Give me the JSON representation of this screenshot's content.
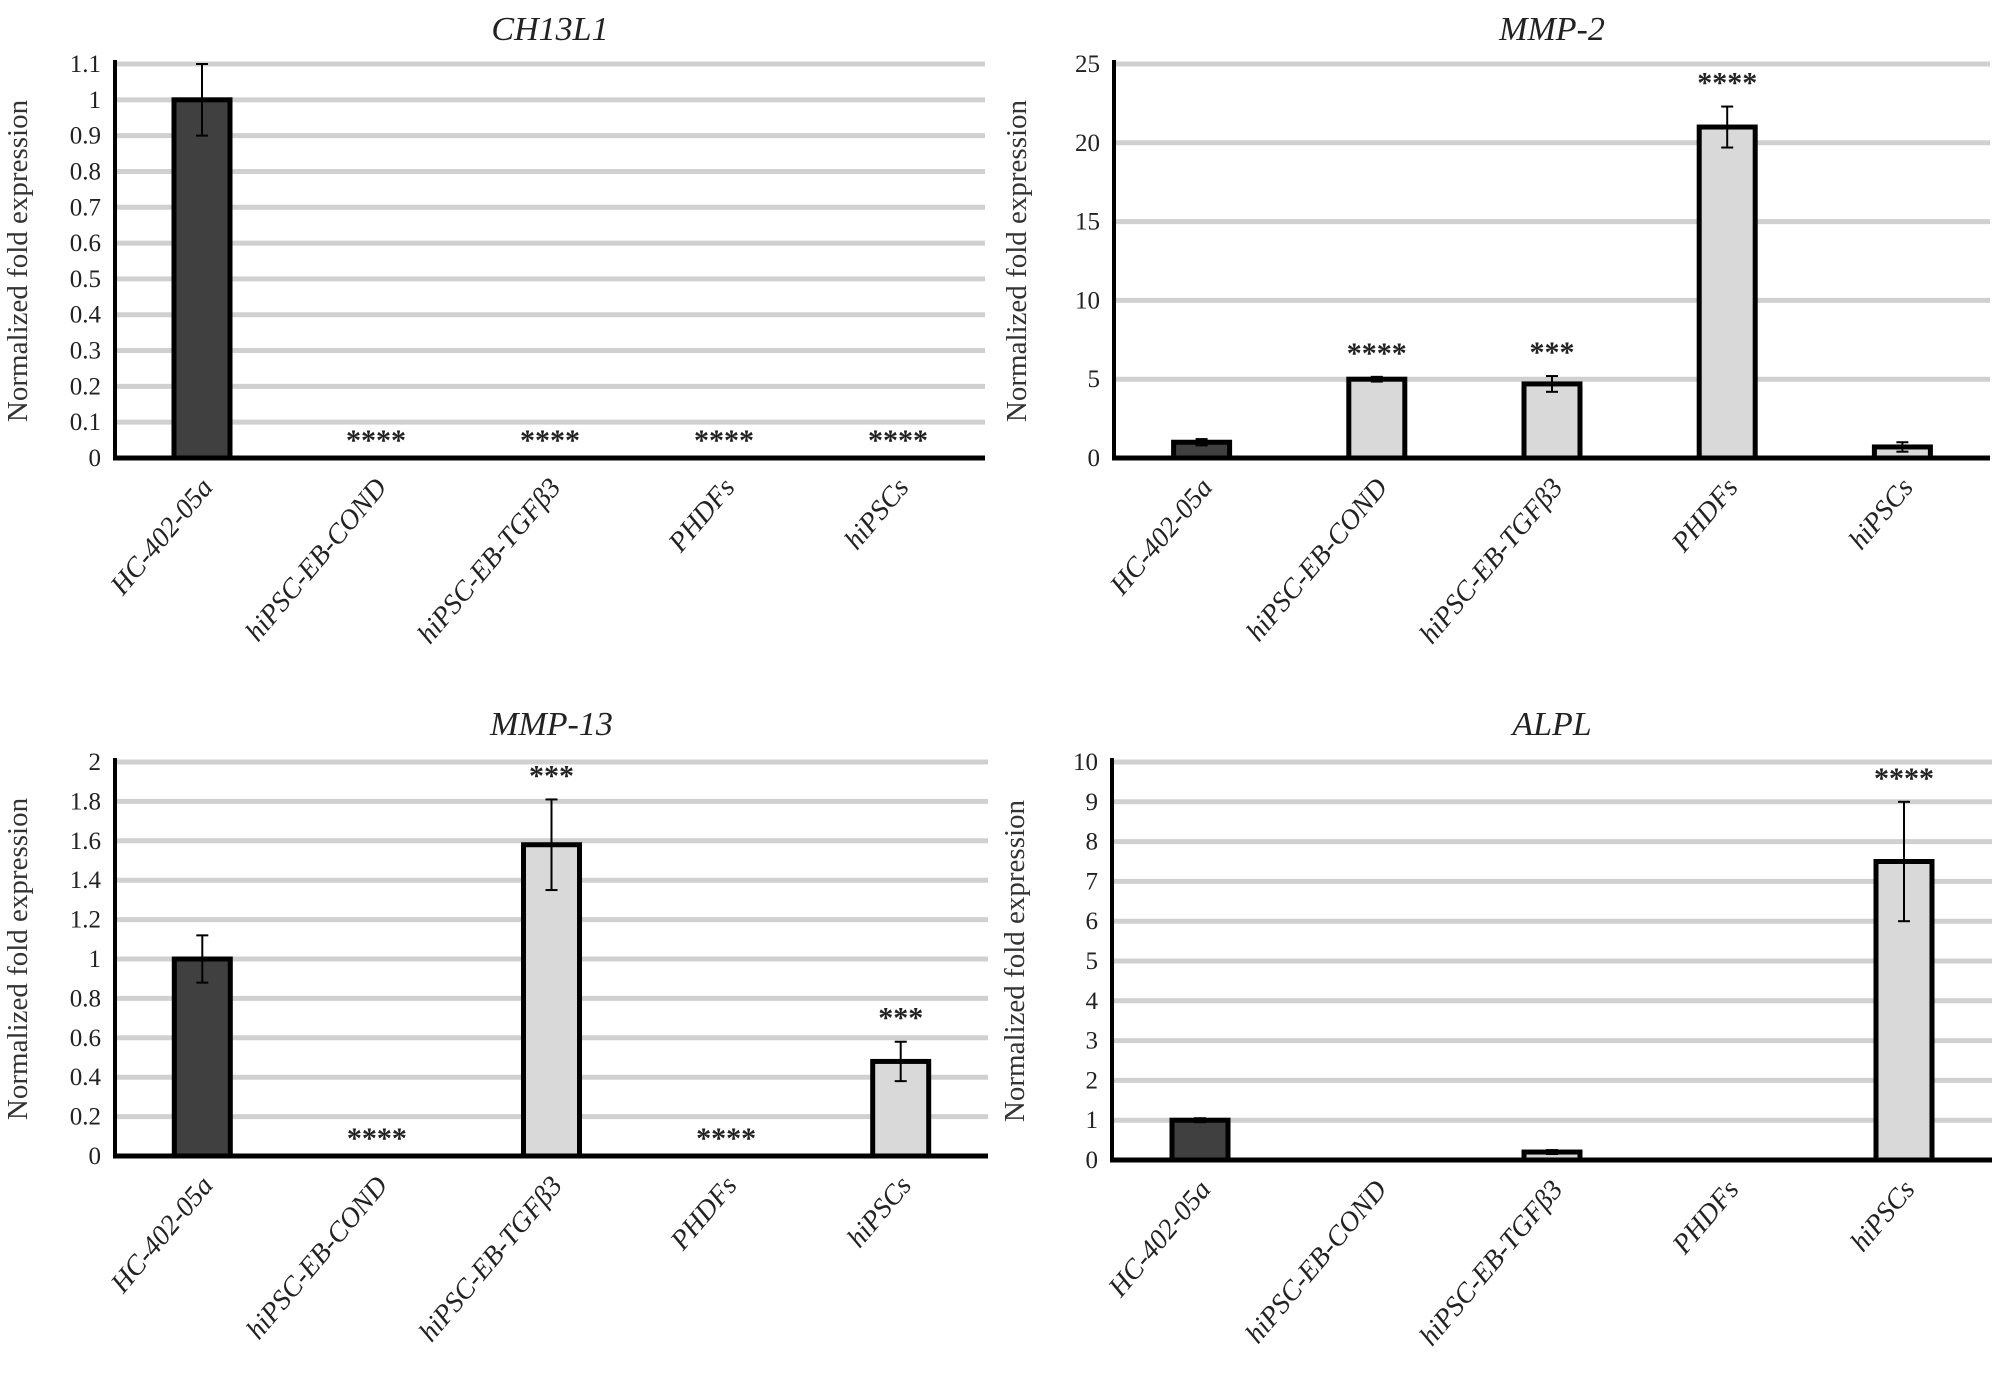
{
  "colors": {
    "control_bar": "#404040",
    "sample_bar": "#d9d9d9",
    "grid": "#d0d0d0",
    "axis": "#000000"
  },
  "chart_data": [
    {
      "type": "bar",
      "title": "CH13L1",
      "ylabel": "Normalized fold expression",
      "ylim": [
        0,
        1.1
      ],
      "yticks": [
        "0",
        "0.1",
        "0.2",
        "0.3",
        "0.4",
        "0.5",
        "0.6",
        "0.7",
        "0.8",
        "0.9",
        "1",
        "1.1"
      ],
      "grid": true,
      "categories": [
        "HC-402-05a",
        "hiPSC-EB-COND",
        "hiPSC-EB-TGFβ3",
        "PHDFs",
        "hiPSCs"
      ],
      "values": [
        1.0,
        0,
        0,
        0,
        0
      ],
      "errors": [
        0.1,
        0,
        0,
        0,
        0
      ],
      "significance": [
        "",
        "****",
        "****",
        "****",
        "****"
      ]
    },
    {
      "type": "bar",
      "title": "MMP-2",
      "ylabel": "Normalized fold expression",
      "ylim": [
        0,
        25
      ],
      "yticks": [
        "0",
        "5",
        "10",
        "15",
        "20",
        "25"
      ],
      "grid": true,
      "categories": [
        "HC-402-05a",
        "hiPSC-EB-COND",
        "hiPSC-EB-TGFβ3",
        "PHDFs",
        "hiPSCs"
      ],
      "values": [
        1.0,
        5.0,
        4.7,
        21.0,
        0.7
      ],
      "errors": [
        0.2,
        0.15,
        0.5,
        1.3,
        0.3
      ],
      "significance": [
        "",
        "****",
        "***",
        "****",
        ""
      ]
    },
    {
      "type": "bar",
      "title": "MMP-13",
      "ylabel": "Normalized fold expression",
      "ylim": [
        0,
        2
      ],
      "yticks": [
        "0",
        "0.2",
        "0.4",
        "0.6",
        "0.8",
        "1",
        "1.2",
        "1.4",
        "1.6",
        "1.8",
        "2"
      ],
      "grid": true,
      "categories": [
        "HC-402-05a",
        "hiPSC-EB-COND",
        "hiPSC-EB-TGFβ3",
        "PHDFs",
        "hiPSCs"
      ],
      "values": [
        1.0,
        0,
        1.58,
        0,
        0.48
      ],
      "errors": [
        0.12,
        0,
        0.23,
        0,
        0.1
      ],
      "significance": [
        "",
        "****",
        "***",
        "****",
        "***"
      ]
    },
    {
      "type": "bar",
      "title": "ALPL",
      "ylabel": "Normalized fold expression",
      "ylim": [
        0,
        10
      ],
      "yticks": [
        "0",
        "1",
        "2",
        "3",
        "4",
        "5",
        "6",
        "7",
        "8",
        "9",
        "10"
      ],
      "grid": true,
      "categories": [
        "HC-402-05a",
        "hiPSC-EB-COND",
        "hiPSC-EB-TGFβ3",
        "PHDFs",
        "hiPSCs"
      ],
      "values": [
        1.0,
        0,
        0.2,
        0,
        7.5
      ],
      "errors": [
        0.05,
        0,
        0.05,
        0,
        1.5
      ],
      "significance": [
        "",
        "",
        "",
        "",
        "****"
      ]
    }
  ]
}
